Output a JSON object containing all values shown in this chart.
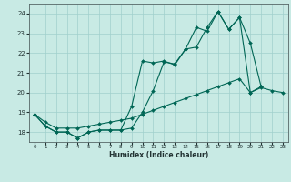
{
  "xlabel": "Humidex (Indice chaleur)",
  "background_color": "#c8eae4",
  "grid_color": "#a0d0cc",
  "line_color": "#006655",
  "xlim": [
    -0.5,
    23.5
  ],
  "ylim": [
    17.5,
    24.5
  ],
  "yticks": [
    18,
    19,
    20,
    21,
    22,
    23,
    24
  ],
  "xticks": [
    0,
    1,
    2,
    3,
    4,
    5,
    6,
    7,
    8,
    9,
    10,
    11,
    12,
    13,
    14,
    15,
    16,
    17,
    18,
    19,
    20,
    21,
    22,
    23
  ],
  "x_line1": [
    0,
    1,
    2,
    3,
    4,
    5,
    6,
    7,
    8,
    9,
    10,
    11,
    12,
    13,
    14,
    15,
    16,
    17,
    18,
    19,
    20,
    21
  ],
  "y_line1": [
    18.9,
    18.3,
    18.0,
    18.0,
    17.7,
    18.0,
    18.1,
    18.1,
    18.1,
    18.2,
    19.0,
    20.1,
    21.55,
    21.45,
    22.2,
    23.3,
    23.1,
    24.1,
    23.2,
    23.8,
    20.0,
    20.3
  ],
  "x_line2": [
    0,
    1,
    2,
    3,
    4,
    5,
    6,
    7,
    8,
    9,
    10,
    11,
    12,
    13,
    14,
    15,
    16,
    17,
    18,
    19,
    20,
    21
  ],
  "y_line2": [
    18.9,
    18.3,
    18.0,
    18.0,
    17.7,
    18.0,
    18.1,
    18.1,
    18.1,
    19.3,
    21.6,
    21.5,
    21.6,
    21.4,
    22.2,
    22.3,
    23.3,
    24.1,
    23.2,
    23.8,
    22.5,
    20.3
  ],
  "x_line3": [
    0,
    1,
    2,
    3,
    4,
    5,
    6,
    7,
    8,
    9,
    10,
    11,
    12,
    13,
    14,
    15,
    16,
    17,
    18,
    19,
    20,
    21,
    22,
    23
  ],
  "y_line3": [
    18.9,
    18.5,
    18.2,
    18.2,
    18.2,
    18.3,
    18.4,
    18.5,
    18.6,
    18.7,
    18.9,
    19.1,
    19.3,
    19.5,
    19.7,
    19.9,
    20.1,
    20.3,
    20.5,
    20.7,
    20.0,
    20.25,
    20.1,
    20.0
  ]
}
